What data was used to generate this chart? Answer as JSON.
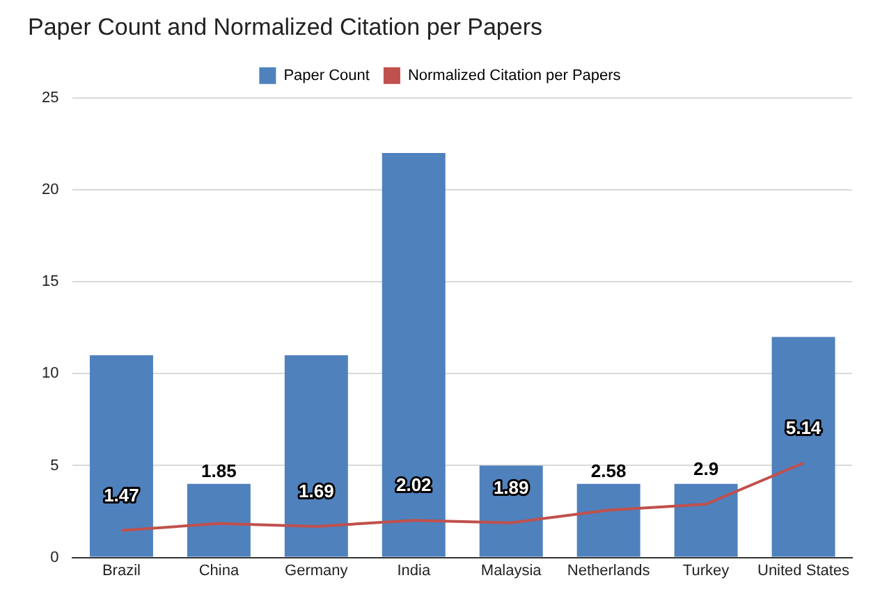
{
  "chart_data": {
    "type": "bar",
    "title": "Paper Count and Normalized Citation per Papers",
    "categories": [
      "Brazil",
      "China",
      "Germany",
      "India",
      "Malaysia",
      "Netherlands",
      "Turkey",
      "United States"
    ],
    "series": [
      {
        "name": "Paper Count",
        "color": "#4f81bd",
        "values": [
          11,
          4,
          11,
          22,
          5,
          4,
          4,
          12
        ]
      },
      {
        "name": "Normalized Citation per Papers",
        "type": "line",
        "color": "#c0504d",
        "values": [
          1.47,
          1.85,
          1.69,
          2.02,
          1.89,
          2.58,
          2.9,
          5.14
        ],
        "value_labels": [
          "1.47",
          "1.85",
          "1.69",
          "2.02",
          "1.89",
          "2.58",
          "2.9",
          "5.14"
        ]
      }
    ],
    "ylim": [
      0,
      25
    ],
    "yticks": [
      0,
      5,
      10,
      15,
      20,
      25
    ],
    "grid": "y",
    "legend": "top",
    "marker": "none"
  }
}
